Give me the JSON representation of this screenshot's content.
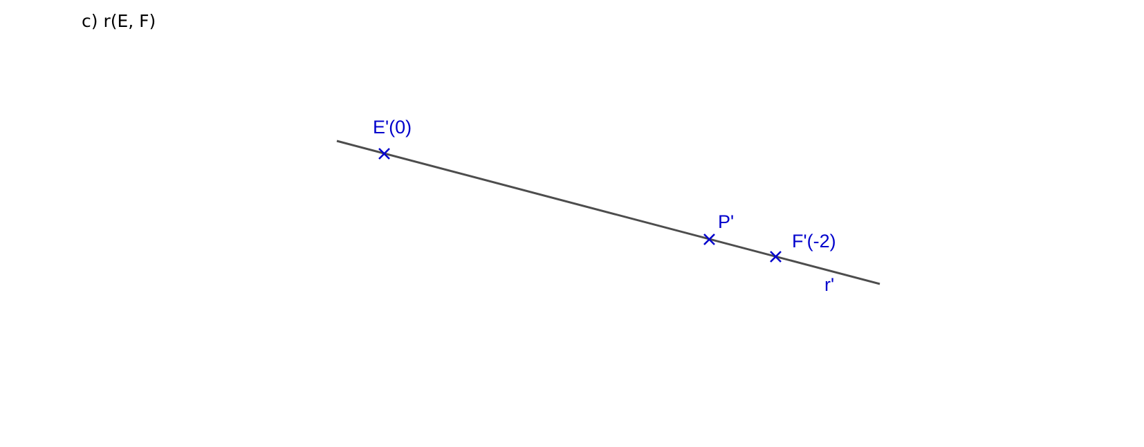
{
  "heading": "c) r(E, F)",
  "colors": {
    "line": "#4d4d4d",
    "points": "#0000cc",
    "heading": "#000000"
  },
  "icons": {
    "point_marker": "cross-mark-icon"
  },
  "line": {
    "label": "r'"
  },
  "points": [
    {
      "id": "E",
      "label": "E'(0)"
    },
    {
      "id": "P",
      "label": "P'"
    },
    {
      "id": "F",
      "label": "F'(-2)"
    }
  ]
}
